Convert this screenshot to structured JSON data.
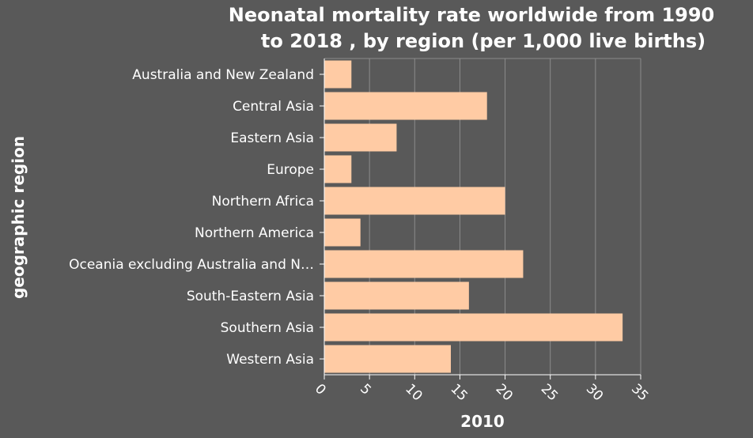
{
  "chart_data": {
    "type": "bar",
    "orientation": "horizontal",
    "title_lines": [
      "Neonatal mortality rate worldwide from 1990",
      "to 2018 , by region (per 1,000 live births)"
    ],
    "xlabel": "2010",
    "ylabel": "geographic region",
    "categories": [
      "Australia and New Zealand",
      "Central Asia",
      "Eastern Asia",
      "Europe",
      "Northern Africa",
      "Northern America",
      "Oceania excluding Australia and N…",
      "South-Eastern Asia",
      "Southern Asia",
      "Western Asia"
    ],
    "values": [
      3,
      18,
      8,
      3,
      20,
      4,
      22,
      16,
      33,
      14
    ],
    "xlim": [
      0,
      35
    ],
    "xticks": [
      0,
      5,
      10,
      15,
      20,
      25,
      30,
      35
    ],
    "grid": true,
    "colors": {
      "background": "#595959",
      "bar": "#ffcba4",
      "grid": "#8c8c8c",
      "text": "#ffffff"
    }
  }
}
